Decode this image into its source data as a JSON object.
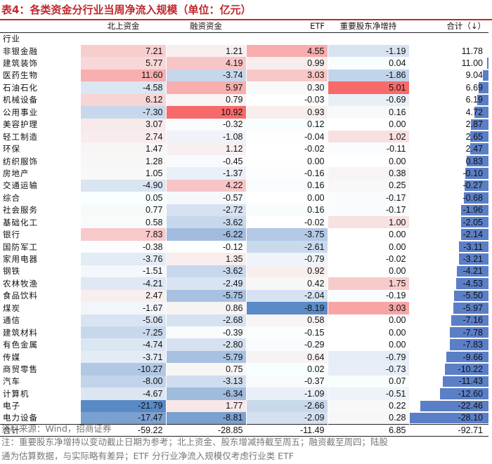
{
  "title": "表4：各类资金分行业当周净流入规模（单位：亿元）",
  "headers": [
    "北上资金",
    "融资资金",
    "ETF",
    "重要股东净增持",
    "合计（↓）"
  ],
  "subheader_label": "行业",
  "rows": [
    {
      "name": "非银金融",
      "v": [
        "7.21",
        "1.21",
        "4.55",
        "-1.19",
        "11.78"
      ]
    },
    {
      "name": "建筑装饰",
      "v": [
        "5.77",
        "4.19",
        "0.99",
        "0.04",
        "11.00"
      ]
    },
    {
      "name": "医药生物",
      "v": [
        "11.60",
        "-3.74",
        "3.03",
        "-1.86",
        "9.04"
      ]
    },
    {
      "name": "石油石化",
      "v": [
        "-4.58",
        "5.97",
        "0.30",
        "5.01",
        "6.69"
      ]
    },
    {
      "name": "机械设备",
      "v": [
        "6.12",
        "0.79",
        "-0.03",
        "-0.69",
        "6.19"
      ]
    },
    {
      "name": "公用事业",
      "v": [
        "-7.30",
        "10.92",
        "0.93",
        "0.16",
        "4.72"
      ]
    },
    {
      "name": "美容护理",
      "v": [
        "3.07",
        "-0.32",
        "0.12",
        "0.00",
        "2.87"
      ]
    },
    {
      "name": "轻工制造",
      "v": [
        "2.74",
        "-1.08",
        "-0.04",
        "1.02",
        "2.65"
      ]
    },
    {
      "name": "环保",
      "v": [
        "1.47",
        "1.12",
        "-0.02",
        "-0.11",
        "2.47"
      ]
    },
    {
      "name": "纺织服饰",
      "v": [
        "1.28",
        "-0.45",
        "0.00",
        "0.00",
        "0.83"
      ]
    },
    {
      "name": "房地产",
      "v": [
        "1.05",
        "-1.37",
        "-0.16",
        "0.38",
        "-0.10"
      ]
    },
    {
      "name": "交通运输",
      "v": [
        "-4.90",
        "4.22",
        "0.16",
        "0.25",
        "-0.27"
      ]
    },
    {
      "name": "综合",
      "v": [
        "0.05",
        "-0.57",
        "0.00",
        "-0.17",
        "-0.68"
      ]
    },
    {
      "name": "社会服务",
      "v": [
        "0.77",
        "-2.72",
        "0.16",
        "-0.17",
        "-1.96"
      ]
    },
    {
      "name": "基础化工",
      "v": [
        "0.58",
        "-3.62",
        "-0.02",
        "1.00",
        "-2.05"
      ]
    },
    {
      "name": "银行",
      "v": [
        "7.83",
        "-6.22",
        "-3.75",
        "0.00",
        "-2.14"
      ]
    },
    {
      "name": "国防军工",
      "v": [
        "-0.38",
        "-0.12",
        "-2.61",
        "0.00",
        "-3.11"
      ]
    },
    {
      "name": "家用电器",
      "v": [
        "-3.76",
        "1.35",
        "-0.79",
        "-0.02",
        "-3.21"
      ]
    },
    {
      "name": "钢铁",
      "v": [
        "-1.51",
        "-3.62",
        "0.92",
        "0.00",
        "-4.21"
      ]
    },
    {
      "name": "农林牧渔",
      "v": [
        "-4.21",
        "-2.49",
        "0.42",
        "1.75",
        "-4.53"
      ]
    },
    {
      "name": "食品饮料",
      "v": [
        "2.47",
        "-5.75",
        "-2.04",
        "-0.19",
        "-5.50"
      ]
    },
    {
      "name": "煤炭",
      "v": [
        "-1.67",
        "0.86",
        "-8.19",
        "3.03",
        "-5.97"
      ]
    },
    {
      "name": "通信",
      "v": [
        "-5.06",
        "-2.68",
        "0.58",
        "0.00",
        "-7.16"
      ]
    },
    {
      "name": "建筑材料",
      "v": [
        "-7.25",
        "-0.39",
        "-0.15",
        "0.00",
        "-7.78"
      ]
    },
    {
      "name": "有色金属",
      "v": [
        "-4.74",
        "-2.80",
        "-0.29",
        "0.00",
        "-7.83"
      ]
    },
    {
      "name": "传媒",
      "v": [
        "-3.71",
        "-5.79",
        "0.64",
        "-0.79",
        "-9.66"
      ]
    },
    {
      "name": "商贸零售",
      "v": [
        "-10.27",
        "0.75",
        "0.02",
        "-0.73",
        "-10.22"
      ]
    },
    {
      "name": "汽车",
      "v": [
        "-8.00",
        "-3.13",
        "-0.37",
        "0.07",
        "-11.43"
      ]
    },
    {
      "name": "计算机",
      "v": [
        "-4.67",
        "-6.34",
        "-1.09",
        "-0.51",
        "-12.60"
      ]
    },
    {
      "name": "电子",
      "v": [
        "-21.79",
        "1.77",
        "-2.66",
        "0.22",
        "-22.46"
      ]
    },
    {
      "name": "电力设备",
      "v": [
        "-17.47",
        "-8.81",
        "-2.09",
        "0.28",
        "-28.10"
      ]
    }
  ],
  "total_row": {
    "name": "合计",
    "v": [
      "-59.22",
      "-28.85",
      "-11.49",
      "6.85",
      "-92.71"
    ]
  },
  "source": "资料来源：Wind，招商证券",
  "note_line1": "注：重要股东净增持以变动截止日期为参考；北上资金、股东增减持截至周五；融资截至周四；陆股",
  "note_line2": "通为估算数据，与实际略有差异；ETF 分行业净流入规模仅考虑行业类 ETF",
  "colors": {
    "title": "#c0282e",
    "positive": "#f8696b",
    "negative": "#5a8ac6",
    "neutral": "#ffffff",
    "total_bar": "#5b7fc7"
  }
}
